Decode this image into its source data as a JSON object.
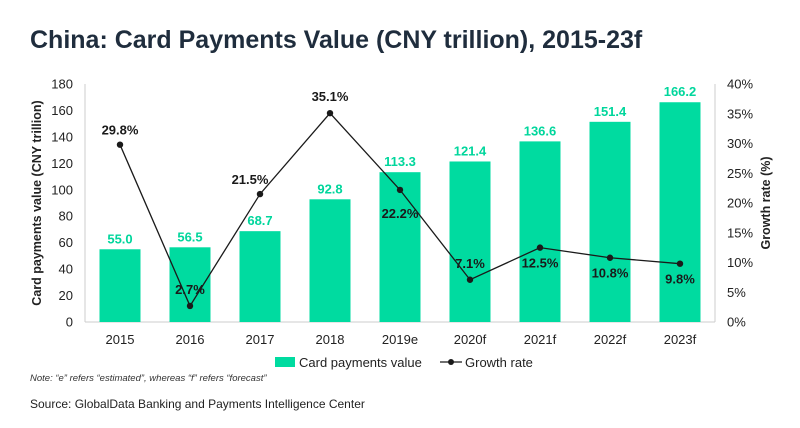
{
  "title": "China: Card Payments Value (CNY trillion), 2015-23f",
  "note": "Note: “e” refers “estimated”, whereas “f” refers “forecast”",
  "source": "Source: GlobalData Banking and Payments Intelligence Center",
  "colors": {
    "bar": "#00dba0",
    "barLabel": "#00d69c",
    "line": "#1a1a1a",
    "axis": "#cccccc",
    "text": "#222222"
  },
  "chart_data": {
    "type": "bar+line",
    "categories": [
      "2015",
      "2016",
      "2017",
      "2018",
      "2019e",
      "2020f",
      "2021f",
      "2022f",
      "2023f"
    ],
    "series": [
      {
        "name": "Card payments value",
        "type": "bar",
        "axis": "left",
        "values": [
          55.0,
          56.5,
          68.7,
          92.8,
          113.3,
          121.4,
          136.6,
          151.4,
          166.2
        ],
        "labels": [
          "55.0",
          "56.5",
          "68.7",
          "92.8",
          "113.3",
          "121.4",
          "136.6",
          "151.4",
          "166.2"
        ]
      },
      {
        "name": "Growth rate",
        "type": "line",
        "axis": "right",
        "values": [
          29.8,
          2.7,
          21.5,
          35.1,
          22.2,
          7.1,
          12.5,
          10.8,
          9.8
        ],
        "labels": [
          "29.8%",
          "2.7%",
          "21.5%",
          "35.1%",
          "22.2%",
          "7.1%",
          "12.5%",
          "10.8%",
          "9.8%"
        ]
      }
    ],
    "ylabel": "Card payments value (CNY trillion)",
    "y2label": "Growth rate (%)",
    "ylim": [
      0,
      180
    ],
    "yticks": [
      "0",
      "20",
      "40",
      "60",
      "80",
      "100",
      "120",
      "140",
      "160",
      "180"
    ],
    "y2lim": [
      0,
      40
    ],
    "y2ticks": [
      "0%",
      "5%",
      "10%",
      "15%",
      "20%",
      "25%",
      "30%",
      "35%",
      "40%"
    ],
    "legend": [
      "Card payments value",
      "Growth rate"
    ]
  }
}
